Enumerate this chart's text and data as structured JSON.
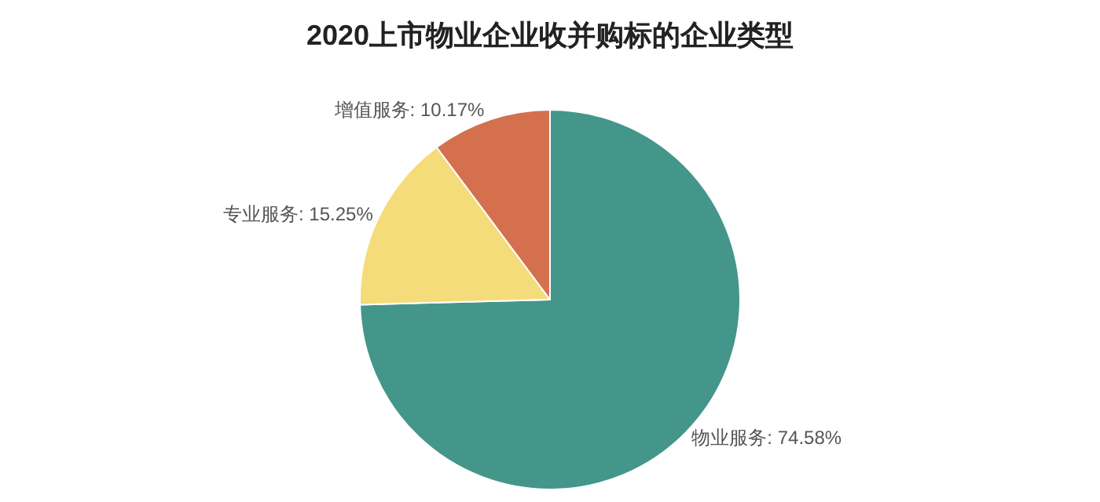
{
  "chart_data": {
    "type": "pie",
    "title": "2020上市物业企业收并购标的企业类型",
    "categories": [
      "物业服务",
      "专业服务",
      "增值服务"
    ],
    "values": [
      74.58,
      15.25,
      10.17
    ],
    "value_labels": [
      "74.58%",
      "15.25%",
      "10.17%"
    ],
    "colors": [
      "#44968a",
      "#f5dc7a",
      "#d4704d"
    ],
    "legend": false
  }
}
